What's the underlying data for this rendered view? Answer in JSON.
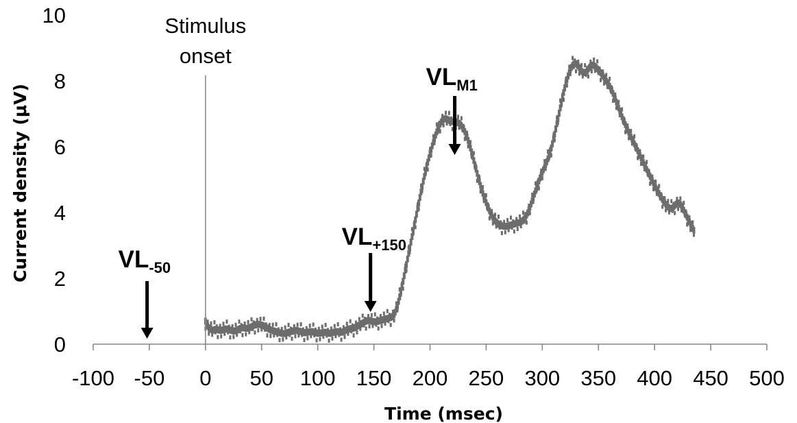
{
  "chart_data": {
    "type": "scatter",
    "xlabel": "Time (msec)",
    "ylabel": "Current density (μV)",
    "xlim": [
      -100,
      500
    ],
    "ylim": [
      0,
      10
    ],
    "x_ticks": [
      -100,
      -50,
      0,
      50,
      100,
      150,
      200,
      250,
      300,
      350,
      400,
      450,
      500
    ],
    "y_ticks": [
      0,
      2,
      4,
      6,
      8,
      10
    ],
    "grid": false,
    "series_color": "#6d6d6d",
    "x_spacing_ms": 1,
    "series": [
      {
        "x_start": 0,
        "values": [
          0.7,
          0.6,
          0.55,
          0.5,
          0.48,
          0.45,
          0.42,
          0.42,
          0.44,
          0.45,
          0.45,
          0.44,
          0.43,
          0.42,
          0.42,
          0.43,
          0.44,
          0.45,
          0.46,
          0.46,
          0.45,
          0.44,
          0.43,
          0.42,
          0.41,
          0.4,
          0.4,
          0.41,
          0.42,
          0.44,
          0.46,
          0.48,
          0.49,
          0.5,
          0.5,
          0.49,
          0.48,
          0.48,
          0.49,
          0.5,
          0.51,
          0.53,
          0.55,
          0.57,
          0.58,
          0.59,
          0.6,
          0.6,
          0.6,
          0.59,
          0.58,
          0.57,
          0.55,
          0.53,
          0.51,
          0.49,
          0.47,
          0.45,
          0.43,
          0.42,
          0.41,
          0.4,
          0.39,
          0.38,
          0.37,
          0.36,
          0.35,
          0.34,
          0.33,
          0.32,
          0.32,
          0.33,
          0.34,
          0.35,
          0.36,
          0.37,
          0.38,
          0.39,
          0.4,
          0.41,
          0.42,
          0.42,
          0.41,
          0.4,
          0.39,
          0.38,
          0.37,
          0.36,
          0.35,
          0.35,
          0.35,
          0.36,
          0.37,
          0.38,
          0.38,
          0.38,
          0.37,
          0.36,
          0.35,
          0.34,
          0.33,
          0.33,
          0.33,
          0.34,
          0.35,
          0.36,
          0.36,
          0.36,
          0.35,
          0.34,
          0.33,
          0.33,
          0.34,
          0.35,
          0.36,
          0.37,
          0.38,
          0.38,
          0.38,
          0.37,
          0.36,
          0.36,
          0.37,
          0.38,
          0.4,
          0.42,
          0.44,
          0.45,
          0.46,
          0.47,
          0.48,
          0.48,
          0.49,
          0.5,
          0.52,
          0.54,
          0.56,
          0.58,
          0.6,
          0.62,
          0.64,
          0.66,
          0.68,
          0.7,
          0.71,
          0.72,
          0.72,
          0.71,
          0.7,
          0.69,
          0.68,
          0.68,
          0.68,
          0.69,
          0.7,
          0.71,
          0.72,
          0.73,
          0.74,
          0.75,
          0.76,
          0.77,
          0.78,
          0.79,
          0.8,
          0.81,
          0.83,
          0.85,
          0.9,
          0.97,
          1.06,
          1.17,
          1.3,
          1.44,
          1.59,
          1.75,
          1.91,
          2.08,
          2.25,
          2.42,
          2.59,
          2.76,
          2.93,
          3.1,
          3.27,
          3.44,
          3.61,
          3.78,
          3.95,
          4.12,
          4.29,
          4.46,
          4.63,
          4.79,
          4.95,
          5.1,
          5.25,
          5.39,
          5.53,
          5.66,
          5.79,
          5.91,
          6.03,
          6.14,
          6.25,
          6.35,
          6.45,
          6.54,
          6.62,
          6.69,
          6.75,
          6.8,
          6.83,
          6.85,
          6.85,
          6.84,
          6.82,
          6.8,
          6.78,
          6.77,
          6.76,
          6.76,
          6.76,
          6.76,
          6.75,
          6.73,
          6.71,
          6.68,
          6.64,
          6.59,
          6.53,
          6.46,
          6.38,
          6.29,
          6.19,
          6.08,
          5.96,
          5.84,
          5.71,
          5.58,
          5.45,
          5.32,
          5.19,
          5.06,
          4.94,
          4.82,
          4.7,
          4.59,
          4.49,
          4.39,
          4.3,
          4.21,
          4.13,
          4.05,
          3.98,
          3.91,
          3.85,
          3.8,
          3.75,
          3.71,
          3.68,
          3.65,
          3.63,
          3.61,
          3.6,
          3.59,
          3.58,
          3.58,
          3.58,
          3.59,
          3.6,
          3.61,
          3.62,
          3.63,
          3.64,
          3.65,
          3.66,
          3.67,
          3.68,
          3.69,
          3.7,
          3.72,
          3.74,
          3.77,
          3.81,
          3.86,
          3.92,
          3.99,
          4.07,
          4.16,
          4.26,
          4.36,
          4.46,
          4.56,
          4.66,
          4.76,
          4.86,
          4.96,
          5.05,
          5.14,
          5.22,
          5.3,
          5.38,
          5.46,
          5.54,
          5.63,
          5.73,
          5.84,
          5.96,
          6.09,
          6.23,
          6.38,
          6.54,
          6.7,
          6.86,
          7.02,
          7.18,
          7.34,
          7.5,
          7.65,
          7.79,
          7.92,
          8.04,
          8.15,
          8.25,
          8.34,
          8.41,
          8.47,
          8.51,
          8.53,
          8.52,
          8.49,
          8.45,
          8.4,
          8.35,
          8.3,
          8.27,
          8.25,
          8.25,
          8.27,
          8.31,
          8.36,
          8.41,
          8.45,
          8.47,
          8.48,
          8.47,
          8.44,
          8.41,
          8.37,
          8.33,
          8.29,
          8.25,
          8.2,
          8.15,
          8.1,
          8.05,
          8.0,
          7.95,
          7.9,
          7.84,
          7.77,
          7.7,
          7.62,
          7.54,
          7.45,
          7.36,
          7.27,
          7.18,
          7.09,
          7.0,
          6.91,
          6.83,
          6.75,
          6.67,
          6.59,
          6.51,
          6.44,
          6.37,
          6.3,
          6.23,
          6.16,
          6.09,
          6.02,
          5.95,
          5.88,
          5.8,
          5.73,
          5.66,
          5.59,
          5.52,
          5.45,
          5.38,
          5.31,
          5.24,
          5.17,
          5.1,
          5.03,
          4.96,
          4.89,
          4.82,
          4.76,
          4.7,
          4.64,
          4.58,
          4.52,
          4.46,
          4.4,
          4.35,
          4.3,
          4.25,
          4.21,
          4.17,
          4.14,
          4.12,
          4.12,
          4.14,
          4.17,
          4.21,
          4.25,
          4.28,
          4.29,
          4.28,
          4.25,
          4.2,
          4.14,
          4.07,
          4.0,
          3.93,
          3.86,
          3.79,
          3.72,
          3.65,
          3.58,
          3.52,
          3.46
        ]
      }
    ],
    "annotations": [
      {
        "text": "Stimulus",
        "x": 0,
        "kind": "onset-line"
      },
      {
        "text": "onset",
        "x": 0,
        "kind": "onset-line"
      },
      {
        "base": "VL",
        "sub": "-50",
        "x": -52
      },
      {
        "base": "VL",
        "sub": "+150",
        "x": 147
      },
      {
        "base": "VL",
        "sub": "M1",
        "x": 222
      }
    ]
  }
}
